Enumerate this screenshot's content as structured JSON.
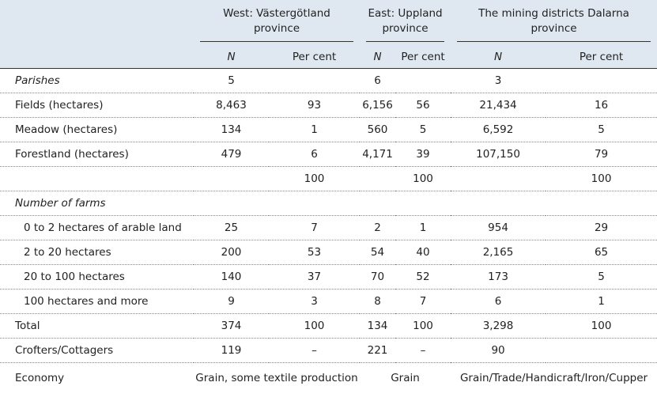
{
  "table": {
    "groups": [
      "West: Västergötland province",
      "East: Uppland province",
      "The mining districts Dalarna province"
    ],
    "subheaders": [
      "N",
      "Per cent",
      "N",
      "Per cent",
      "N",
      "Per cent"
    ],
    "rows": [
      {
        "label": "Parishes",
        "italic": true,
        "cells": [
          "5",
          null,
          "6",
          null,
          "3",
          null
        ]
      },
      {
        "label": "Fields (hectares)",
        "cells": [
          "8,463",
          "93",
          "6,156",
          "56",
          "21,434",
          "16"
        ]
      },
      {
        "label": "Meadow (hectares)",
        "cells": [
          "134",
          "1",
          "560",
          "5",
          "6,592",
          "5"
        ]
      },
      {
        "label": "Forestland (hectares)",
        "cells": [
          "479",
          "6",
          "4,171",
          "39",
          "107,150",
          "79"
        ]
      },
      {
        "label": null,
        "cells": [
          null,
          "100",
          null,
          "100",
          null,
          "100"
        ]
      },
      {
        "label": "Number of farms",
        "italic": true,
        "cells": [
          null,
          null,
          null,
          null,
          null,
          null
        ]
      },
      {
        "label": "0 to 2 hectares of arable land",
        "indent": true,
        "cells": [
          "25",
          "7",
          "2",
          "1",
          "954",
          "29"
        ]
      },
      {
        "label": "2 to 20 hectares",
        "indent": true,
        "cells": [
          "200",
          "53",
          "54",
          "40",
          "2,165",
          "65"
        ]
      },
      {
        "label": "20 to 100 hectares",
        "indent": true,
        "cells": [
          "140",
          "37",
          "70",
          "52",
          "173",
          "5"
        ]
      },
      {
        "label": "100 hectares and more",
        "indent": true,
        "cells": [
          "9",
          "3",
          "8",
          "7",
          "6",
          "1"
        ]
      },
      {
        "label": "Total",
        "cells": [
          "374",
          "100",
          "134",
          "100",
          "3,298",
          "100"
        ]
      },
      {
        "label": "Crofters/Cottagers",
        "cells": [
          "119",
          "–",
          "221",
          "–",
          "90",
          null
        ]
      }
    ],
    "economy": {
      "label": "Economy",
      "cells": [
        "Grain, some textile production",
        "Grain",
        "Grain/Trade/Handicraft/Iron/Cupper"
      ]
    }
  }
}
